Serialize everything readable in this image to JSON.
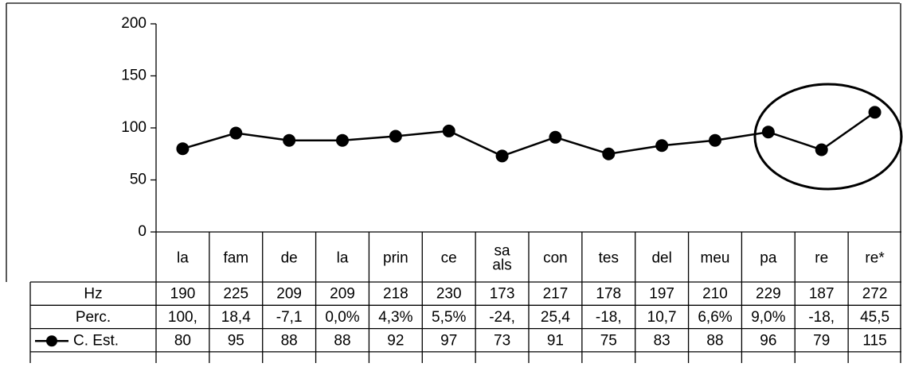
{
  "chart_data": {
    "type": "line",
    "categories": [
      "la",
      "fam",
      "de",
      "la",
      "prin",
      "ce",
      "sa\nals",
      "con",
      "tes",
      "del",
      "meu",
      "pa",
      "re",
      "re*"
    ],
    "series": [
      {
        "name": "C. Est.",
        "color": "#000000",
        "values": [
          80,
          95,
          88,
          88,
          92,
          97,
          73,
          91,
          75,
          83,
          88,
          96,
          79,
          115
        ]
      }
    ],
    "table_rows": [
      {
        "name": "Hz",
        "cells": [
          190,
          225,
          209,
          209,
          218,
          230,
          173,
          217,
          178,
          197,
          210,
          229,
          187,
          272
        ]
      },
      {
        "name": "Perc.",
        "cells": [
          "100,",
          "18,4",
          "-7,1",
          "0,0%",
          "4,3%",
          "5,5%",
          "-24,",
          "25,4",
          "-18,",
          "10,7",
          "6,6%",
          "9,0%",
          "-18,",
          "45,5"
        ]
      }
    ],
    "ylim": [
      0,
      200
    ],
    "yticks": [
      0,
      50,
      100,
      150,
      200
    ]
  }
}
